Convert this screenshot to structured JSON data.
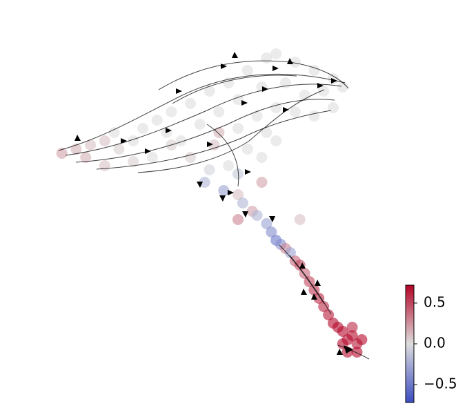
{
  "chart_data": {
    "type": "scatter",
    "x": [
      13,
      16,
      19,
      22,
      18,
      25,
      28,
      24,
      30,
      33,
      36,
      35,
      40,
      44,
      48,
      52,
      56,
      58,
      62,
      66,
      70,
      72,
      68,
      64,
      60,
      55,
      50,
      46,
      42,
      38,
      32,
      40,
      45,
      50,
      54,
      58,
      62,
      66,
      70,
      56,
      52,
      48,
      44,
      50,
      55,
      58,
      46,
      36,
      28,
      22,
      43,
      47,
      50,
      55,
      51,
      53,
      50,
      54,
      56,
      57,
      58,
      59,
      60,
      61,
      62,
      63,
      64,
      65,
      66,
      67,
      68,
      69,
      70,
      71,
      72,
      73,
      74,
      75,
      76,
      72,
      73,
      75,
      74,
      63
    ],
    "y": [
      63,
      64,
      65,
      66,
      62,
      64,
      66,
      68,
      69,
      71,
      73,
      68,
      75,
      78,
      80,
      83,
      86,
      87,
      85,
      83,
      81,
      79,
      78,
      77,
      80,
      79,
      76,
      73,
      70,
      66,
      62,
      62,
      65,
      69,
      72,
      74,
      73,
      72,
      74,
      68,
      64,
      60,
      59,
      58,
      62,
      66,
      68,
      65,
      61,
      60,
      56,
      54,
      53,
      56,
      51,
      49,
      47,
      48,
      46,
      44,
      42,
      41,
      40,
      39,
      37,
      36,
      34,
      32,
      30,
      28,
      26,
      24,
      22,
      21,
      20,
      18,
      19,
      17,
      18,
      17,
      15,
      15,
      21,
      47
    ],
    "values": [
      0.2,
      0.15,
      0.1,
      0.1,
      0.15,
      0.05,
      0,
      0,
      0,
      0,
      0,
      0,
      0,
      0,
      0,
      0,
      0,
      0,
      0,
      0,
      0,
      0,
      0,
      0,
      0,
      0,
      0,
      0,
      0,
      0,
      0,
      0.05,
      0.1,
      0,
      0,
      0,
      0,
      0,
      0,
      0,
      0,
      0,
      -0.05,
      -0.1,
      0,
      0,
      0.15,
      0.05,
      0.05,
      0.1,
      -0.2,
      -0.3,
      0.1,
      0.2,
      -0.2,
      0.2,
      0.3,
      -0.2,
      -0.3,
      -0.4,
      -0.5,
      -0.4,
      0.3,
      -0.3,
      0.4,
      0.5,
      0.4,
      0.5,
      0.55,
      0.6,
      0.6,
      0.65,
      0.7,
      0.7,
      0.7,
      0.7,
      0.7,
      0.65,
      0.7,
      0.7,
      0.7,
      0.7,
      0.6,
      0.1
    ],
    "xlim": [
      0,
      100
    ],
    "ylim": [
      0,
      100
    ],
    "colormap": [
      "#3b4cc0",
      "#dddddd",
      "#b40426"
    ],
    "clim": [
      -0.72,
      0.72
    ],
    "cticks": [
      0.5,
      {
        "value": 0,
        "label": "0.0"
      },
      {
        "value": -0.5,
        "label": "−0.5"
      }
    ]
  }
}
